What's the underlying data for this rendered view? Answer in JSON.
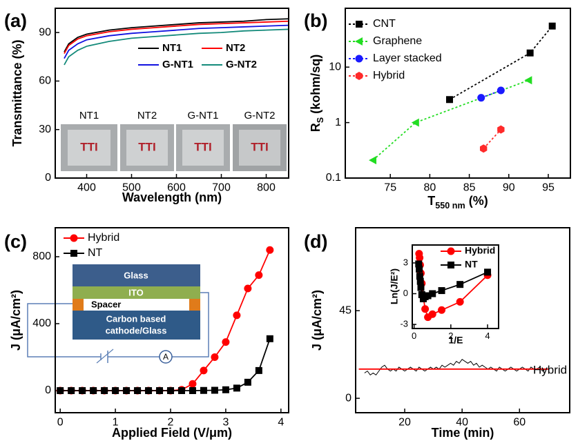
{
  "chart_data": [
    {
      "type": "line",
      "panel": "(a)",
      "xlabel": "Wavelength (nm)",
      "ylabel": "Transmittance (%)",
      "x": [
        350,
        360,
        380,
        400,
        450,
        500,
        550,
        600,
        650,
        700,
        750,
        800,
        850
      ],
      "series": [
        {
          "name": "NT1",
          "color": "#000000",
          "values": [
            78,
            83,
            87,
            89,
            91.5,
            93,
            94,
            95,
            96,
            96.5,
            97,
            98,
            98.5
          ]
        },
        {
          "name": "NT2",
          "color": "#ff0000",
          "values": [
            77,
            82,
            86,
            88,
            90.5,
            92,
            93,
            94,
            95,
            95.5,
            96,
            96.5,
            97
          ]
        },
        {
          "name": "G-NT1",
          "color": "#1010e0",
          "values": [
            74,
            79,
            83,
            85.5,
            88,
            89.5,
            90.5,
            91.5,
            92.5,
            93,
            93.5,
            94,
            94.5
          ]
        },
        {
          "name": "G-NT2",
          "color": "#138a7a",
          "values": [
            70,
            75,
            79,
            81.5,
            84.5,
            86.5,
            87.5,
            88.5,
            89.5,
            90,
            91,
            91.5,
            92
          ]
        }
      ],
      "xlim": [
        330,
        850
      ],
      "ylim": [
        0,
        105
      ],
      "xticks": [
        400,
        500,
        600,
        700,
        800
      ],
      "yticks": [
        0,
        30,
        60,
        90
      ],
      "legend": true,
      "inset_labels": [
        "NT1",
        "NT2",
        "G-NT1",
        "G-NT2"
      ],
      "inset_text": "TTI"
    },
    {
      "type": "scatter",
      "panel": "(b)",
      "xlabel": "T",
      "xlabel_sub": "550 nm",
      "xlabel_unit": "(%)",
      "ylabel": "R",
      "ylabel_sub": "S",
      "ylabel_unit": "(kohm/sq)",
      "yscale": "log",
      "series": [
        {
          "name": "CNT",
          "color": "#000000",
          "marker": "square",
          "linestyle": "dashed",
          "x": [
            82.5,
            92.7,
            95.5
          ],
          "values": [
            2.6,
            18,
            55
          ]
        },
        {
          "name": "Graphene",
          "color": "#22dd22",
          "marker": "triangle",
          "linestyle": "dashed",
          "x": [
            72.8,
            78.2,
            92.5
          ],
          "values": [
            0.21,
            1.0,
            5.8
          ]
        },
        {
          "name": "Layer stacked",
          "color": "#1a1aff",
          "marker": "circle",
          "linestyle": "dashed",
          "x": [
            86.5,
            89
          ],
          "values": [
            2.8,
            3.8
          ]
        },
        {
          "name": "Hybrid",
          "color": "#ff2a2a",
          "marker": "hexagon",
          "linestyle": "dashed",
          "x": [
            86.8,
            89
          ],
          "values": [
            0.34,
            0.75
          ]
        }
      ],
      "xlim": [
        69.3,
        97.8
      ],
      "ylim": [
        0.1,
        115
      ],
      "xticks": [
        75,
        80,
        85,
        90,
        95
      ],
      "yticks": [
        0.1,
        1,
        10
      ],
      "legend": true
    },
    {
      "type": "line",
      "panel": "(c)",
      "xlabel": "Applied Field (V/μm)",
      "ylabel": "J (μA/cm²)",
      "x": [
        0,
        0.2,
        0.4,
        0.6,
        0.8,
        1.0,
        1.2,
        1.4,
        1.6,
        1.8,
        2.0,
        2.2,
        2.4,
        2.6,
        2.8,
        3.0,
        3.2,
        3.4,
        3.6,
        3.8
      ],
      "series": [
        {
          "name": "Hybrid",
          "color": "#ff0000",
          "marker": "circle",
          "values": [
            0,
            0,
            0,
            0,
            0,
            0,
            0,
            0,
            0,
            0,
            0,
            5,
            40,
            120,
            200,
            290,
            450,
            610,
            690,
            840
          ]
        },
        {
          "name": "NT",
          "color": "#000000",
          "marker": "square",
          "values": [
            0,
            0,
            0,
            0,
            0,
            0,
            0,
            0,
            0,
            0,
            0,
            0,
            0,
            1,
            2,
            5,
            15,
            50,
            120,
            310
          ]
        }
      ],
      "xlim": [
        -0.09,
        4.14
      ],
      "ylim": [
        -132,
        973
      ],
      "xticks": [
        0,
        1,
        2,
        3,
        4
      ],
      "yticks": [
        0,
        400,
        800
      ],
      "legend": true,
      "diagram": {
        "glass": "Glass",
        "ito": "ITO",
        "spacer": "Spacer",
        "cathode": [
          "Carbon based",
          "cathode/Glass"
        ],
        "meter": "A"
      }
    },
    {
      "type": "line",
      "panel": "(d)",
      "xlabel": "Time (min)",
      "ylabel": "J (μA/cm²)",
      "x": [
        6,
        7,
        8,
        9,
        10,
        11,
        12,
        13,
        14,
        15,
        16,
        17,
        18,
        19,
        20,
        21,
        22,
        23,
        24,
        25,
        26,
        27,
        28,
        29,
        30,
        31,
        32,
        33,
        34,
        35,
        36,
        37,
        38,
        39,
        40,
        41,
        42,
        43,
        44,
        45,
        46,
        47,
        48,
        49,
        50,
        51,
        52,
        53,
        54,
        55,
        56,
        57,
        58,
        59,
        60,
        61,
        62,
        63,
        64,
        65,
        66,
        67,
        68,
        69
      ],
      "series": [
        {
          "name": "Hybrid",
          "color": "#000000",
          "values": [
            13,
            14,
            12,
            13,
            12,
            14,
            16,
            17,
            15,
            14,
            15,
            14,
            16,
            15,
            14,
            15,
            16,
            15,
            14,
            16,
            15,
            14,
            15,
            16,
            15,
            16,
            15,
            17,
            16,
            17,
            18,
            17,
            19,
            18,
            20,
            19,
            18,
            19,
            17,
            18,
            16,
            17,
            16,
            15,
            16,
            15,
            14,
            16,
            15,
            14,
            15,
            16,
            15,
            14,
            15,
            16,
            15,
            14,
            16,
            15,
            15,
            16,
            14,
            15
          ]
        },
        {
          "color": "#ff0000",
          "x": [
            4,
            70
          ],
          "values": [
            15,
            15
          ]
        }
      ],
      "xlim": [
        2.9,
        77.5
      ],
      "ylim": [
        -7.4,
        87.6
      ],
      "xticks": [
        20,
        40,
        60
      ],
      "yticks": [
        0,
        45
      ]
    },
    {
      "type": "line",
      "xlabel": "1/E",
      "ylabel": "Ln(J/E²)",
      "series": [
        {
          "name": "Hybrid",
          "color": "#ff0000",
          "marker": "circle",
          "x": [
            0.27,
            0.3,
            0.33,
            0.37,
            0.42,
            0.5,
            0.6,
            0.75,
            1.0,
            1.5,
            2.5,
            4.0
          ],
          "values": [
            3.9,
            3.5,
            2.8,
            2.0,
            1.0,
            -0.3,
            -1.5,
            -2.3,
            -2.0,
            -1.6,
            -0.8,
            1.8
          ]
        },
        {
          "name": "NT",
          "color": "#000000",
          "marker": "square",
          "x": [
            0.25,
            0.28,
            0.31,
            0.34,
            0.37,
            0.42,
            0.5,
            0.6,
            0.75,
            1.0,
            1.5,
            2.5,
            4.0
          ],
          "values": [
            2.9,
            2.4,
            1.7,
            1.2,
            0.6,
            -0.1,
            -0.5,
            -0.3,
            -0.2,
            0,
            0.3,
            0.9,
            2.1
          ]
        }
      ],
      "xlim": [
        -0.1,
        4.6
      ],
      "ylim": [
        -3.4,
        4.75
      ],
      "xticks": [
        0,
        2,
        4
      ],
      "yticks": [
        -3,
        0,
        3
      ],
      "legend": true
    }
  ]
}
